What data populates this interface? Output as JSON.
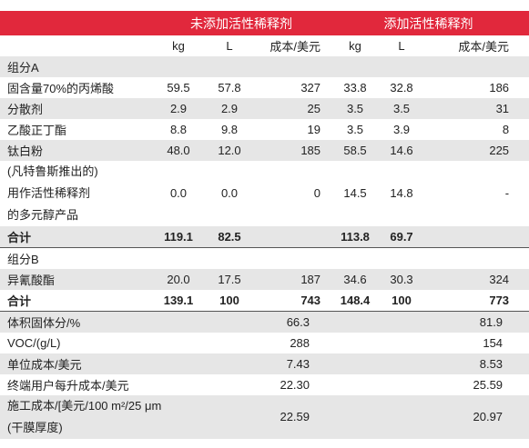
{
  "header": {
    "groups": [
      "未添加活性稀释剂",
      "添加活性稀释剂"
    ],
    "columns": [
      "kg",
      "L",
      "成本/美元",
      "kg",
      "L",
      "成本/美元"
    ]
  },
  "group_a": {
    "title": "组分A",
    "rows": [
      {
        "label": [
          "固含量70%的丙烯酸"
        ],
        "values": [
          "59.5",
          "57.8",
          "327",
          "33.8",
          "32.8",
          "186"
        ]
      },
      {
        "label": [
          "分散剂"
        ],
        "values": [
          "2.9",
          "2.9",
          "25",
          "3.5",
          "3.5",
          "31"
        ]
      },
      {
        "label": [
          "乙酸正丁酯"
        ],
        "values": [
          "8.8",
          "9.8",
          "19",
          "3.5",
          "3.9",
          "8"
        ]
      },
      {
        "label": [
          "钛白粉"
        ],
        "values": [
          "48.0",
          "12.0",
          "185",
          "58.5",
          "14.6",
          "225"
        ]
      },
      {
        "label": [
          "(凡特鲁斯推出的)",
          "用作活性稀释剂",
          "的多元醇产品"
        ],
        "values": [
          "0.0",
          "0.0",
          "0",
          "14.5",
          "14.8",
          "-"
        ]
      }
    ],
    "total": {
      "label": "合计",
      "values": [
        "119.1",
        "82.5",
        null,
        "113.8",
        "69.7",
        null
      ]
    }
  },
  "group_b": {
    "title": "组分B",
    "rows": [
      {
        "label": [
          "异氰酸酯"
        ],
        "values": [
          "20.0",
          "17.5",
          "187",
          "34.6",
          "30.3",
          "324"
        ]
      }
    ],
    "total": {
      "label": "合计",
      "values": [
        "139.1",
        "100",
        "743",
        "148.4",
        "100",
        "773"
      ]
    }
  },
  "summary": {
    "rows": [
      {
        "label": [
          "体积固体分/%"
        ],
        "values": [
          "66.3",
          "81.9"
        ]
      },
      {
        "label": [
          "VOC/(g/L)"
        ],
        "values": [
          "288",
          "154"
        ]
      },
      {
        "label": [
          "单位成本/美元"
        ],
        "values": [
          "7.43",
          "8.53"
        ]
      },
      {
        "label": [
          "终端用户每升成本/美元"
        ],
        "values": [
          "22.30",
          "25.59"
        ]
      },
      {
        "label": [
          "施工成本/[美元/100 m²/25 μm",
          "(干膜厚度)"
        ],
        "values": [
          "22.59",
          "20.97"
        ]
      }
    ]
  }
}
